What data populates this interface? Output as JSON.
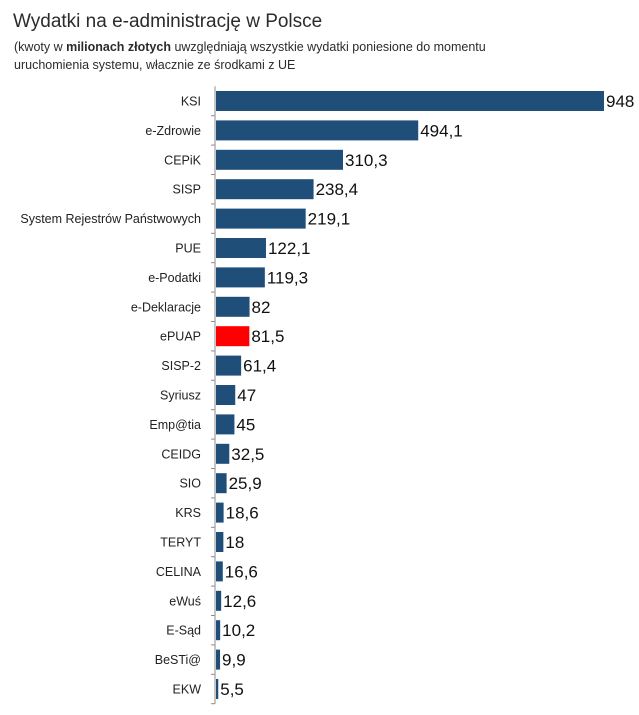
{
  "header": {
    "title": "Wydatki na e-administrację w Polsce",
    "subtitle_pre": "(kwoty w ",
    "subtitle_bold": "milionach złotych",
    "subtitle_post": " uwzględniają wszystkie wydatki poniesione do momentu uruchomienia systemu, włacznie ze środkami z UE"
  },
  "chart_data": {
    "type": "bar",
    "orientation": "horizontal",
    "title": "Wydatki na e-administrację w Polsce",
    "subtitle": "(kwoty w milionach złotych uwzględniają wszystkie wydatki poniesione do momentu uruchomienia systemu, włacznie ze środkami z UE",
    "xlabel": "",
    "ylabel": "",
    "xlim": [
      0,
      948
    ],
    "grid": false,
    "legend": "none",
    "colors": {
      "bar": "#1f4e79",
      "highlight": "#ff0000",
      "axis": "#8c8c8c"
    },
    "categories": [
      "KSI",
      "e-Zdrowie",
      "CEPiK",
      "SISP",
      "System Rejestrów Państwowych",
      "PUE",
      "e-Podatki",
      "e-Deklaracje",
      "ePUAP",
      "SISP-2",
      "Syriusz",
      "Emp@tia",
      "CEIDG",
      "SIO",
      "KRS",
      "TERYT",
      "CELINA",
      "eWuś",
      "E-Sąd",
      "BeSTi@",
      "EKW"
    ],
    "values": [
      948,
      494.1,
      310.3,
      238.4,
      219.1,
      122.1,
      119.3,
      82,
      81.5,
      61.4,
      47,
      45,
      32.5,
      25.9,
      18.6,
      18,
      16.6,
      12.6,
      10.2,
      9.9,
      5.5
    ],
    "value_labels": [
      "948",
      "494,1",
      "310,3",
      "238,4",
      "219,1",
      "122,1",
      "119,3",
      "82",
      "81,5",
      "61,4",
      "47",
      "45",
      "32,5",
      "25,9",
      "18,6",
      "18",
      "16,6",
      "12,6",
      "10,2",
      "9,9",
      "5,5"
    ],
    "highlighted_category": "ePUAP"
  }
}
